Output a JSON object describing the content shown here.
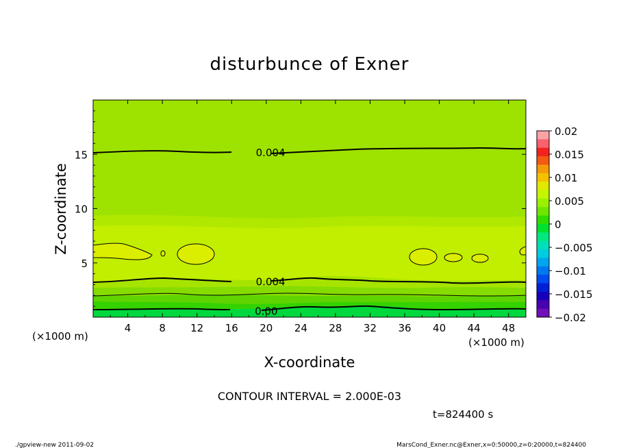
{
  "chart_data": {
    "type": "heatmap",
    "title": "disturbunce of Exner",
    "xlabel": "X-coordinate",
    "ylabel": "Z-coordinate",
    "x_unit": "(×1000 m)",
    "x_unit_right": "(×1000 m)",
    "xlim": [
      0,
      50
    ],
    "ylim": [
      0,
      20
    ],
    "x_ticks": [
      4,
      8,
      12,
      16,
      20,
      24,
      28,
      32,
      36,
      40,
      44,
      48
    ],
    "y_ticks": [
      5,
      10,
      15
    ],
    "contour_interval_text": "CONTOUR INTERVAL = 2.000E-03",
    "time_text": "t=824400 s",
    "colorbar": {
      "range": [
        -0.02,
        0.02
      ],
      "tick_labels": [
        "0.02",
        "0.015",
        "0.01",
        "0.005",
        "0",
        "−0.005",
        "−0.01",
        "−0.015",
        "−0.02"
      ],
      "tick_values": [
        0.02,
        0.015,
        0.01,
        0.005,
        0,
        -0.005,
        -0.01,
        -0.015,
        -0.02
      ],
      "colors": [
        "#f9a3a8",
        "#f9616d",
        "#f3221f",
        "#f35a12",
        "#f59b09",
        "#f5c000",
        "#e0e900",
        "#c5f500",
        "#9bf000",
        "#6ee600",
        "#31dc00",
        "#00e030",
        "#00e880",
        "#00e0b8",
        "#00cce0",
        "#00a6f0",
        "#0078f0",
        "#004cee",
        "#0020d8",
        "#1800b8",
        "#4800b0",
        "#7010b8"
      ]
    },
    "contour_labels": [
      {
        "text": "0.004",
        "x": 20.5,
        "z": 15.2
      },
      {
        "text": "0.004",
        "x": 20.5,
        "z": 3.3
      },
      {
        "text": "0.00",
        "x": 20.0,
        "z": 0.6
      }
    ]
  },
  "footer": {
    "left": "./gpview-new  2011-09-02",
    "right": "MarsCond_Exner.nc@Exner,x=0:50000,z=0:20000,t=824400"
  }
}
